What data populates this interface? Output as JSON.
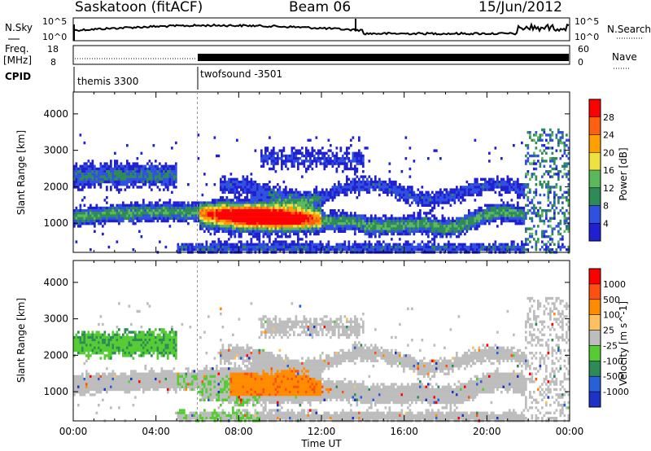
{
  "header": {
    "station": "Saskatoon (fitACF)",
    "beam": "Beam 06",
    "date": "15/Jun/2012"
  },
  "panels": {
    "nsky": {
      "label": "N.Sky",
      "ticks": [
        "10^5",
        "10^0"
      ],
      "right_label": "N.Search",
      "right_ticks": [
        "10^5",
        "10^0"
      ]
    },
    "freq": {
      "label_top": "Freq.",
      "label_bottom": "[MHz]",
      "ticks": [
        "18",
        "8"
      ],
      "right_label": "Nave",
      "right_ticks": [
        "60",
        "0"
      ]
    },
    "cpid": {
      "label": "CPID",
      "segments": [
        {
          "name": "themis 3300",
          "start_hour": 0
        },
        {
          "name": "twofsound -3501",
          "start_hour": 6
        }
      ]
    }
  },
  "chart_data": [
    {
      "type": "heatmap",
      "name": "power",
      "ylabel": "Slant Range [km]",
      "yticks": [
        1000,
        2000,
        3000,
        4000
      ],
      "ylim": [
        200,
        4600
      ],
      "xlim_hours": [
        0,
        24
      ],
      "colorbar_label": "Power [dB]",
      "colorbar_ticks": [
        "28",
        "24",
        "20",
        "16",
        "12",
        "8",
        "4"
      ],
      "colors": [
        "#2020d0",
        "#3050e0",
        "#2e8b57",
        "#5cb85c",
        "#f0e040",
        "#ffa000",
        "#ff6010",
        "#ff0000"
      ]
    },
    {
      "type": "heatmap",
      "name": "velocity",
      "ylabel": "Slant Range [km]",
      "yticks": [
        1000,
        2000,
        3000,
        4000
      ],
      "ylim": [
        200,
        4600
      ],
      "xlim_hours": [
        0,
        24
      ],
      "colorbar_label": "Velocity [m s^-1]",
      "colorbar_ticks": [
        "1000",
        "500",
        "100",
        "25",
        "-25",
        "-100",
        "-500",
        "-1000"
      ],
      "colors": [
        "#1e32c8",
        "#2860d8",
        "#2e8b57",
        "#55cc33",
        "#bdbdbd",
        "#ffc060",
        "#ff8c00",
        "#ff5010",
        "#ff0000"
      ],
      "xticks": [
        "00:00",
        "04:00",
        "08:00",
        "12:00",
        "16:00",
        "20:00",
        "00:00"
      ],
      "xlabel": "Time UT"
    }
  ]
}
